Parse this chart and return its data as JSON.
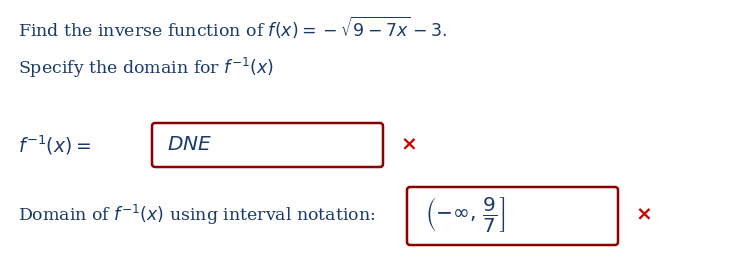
{
  "bg_color": "#ffffff",
  "line1_plain": "Find the inverse function of ",
  "line1_math": "$f(x) = -\\sqrt{9-7x} - 3.$",
  "line2_plain": "Specify the domain for ",
  "line2_math": "$f^{-1}(x)$",
  "label_finv": "$f^{-1}(x) = $",
  "box1_text": "$DNE$",
  "label_domain_plain": "Domain of ",
  "label_domain_math1": "$f^{-1}(x)$",
  "label_domain_plain2": " using interval notation:",
  "box2_text": "$\\left(-\\infty,\\, \\dfrac{9}{7}\\right]$",
  "text_color": "#1a3a6b",
  "box_edge_color": "#8b0000",
  "x_color": "#cc0000",
  "font_size_main": 12.5,
  "font_size_box": 13
}
